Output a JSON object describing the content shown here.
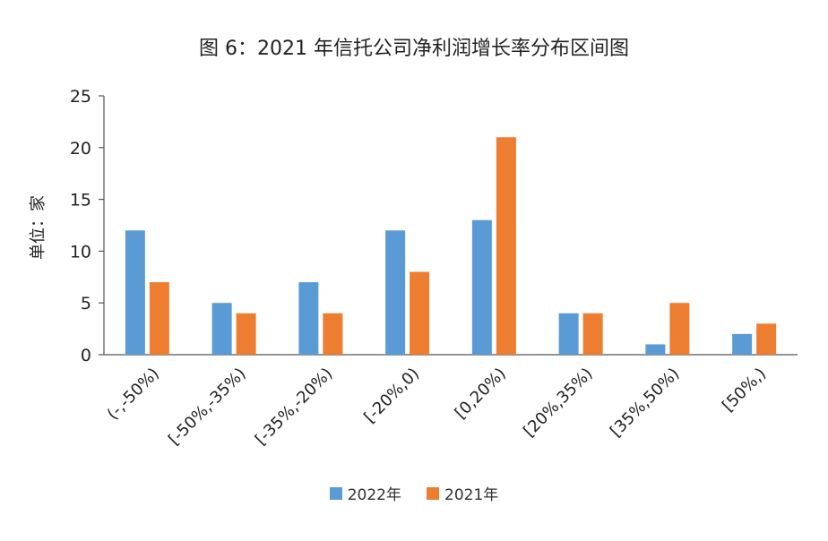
{
  "chart_data": {
    "type": "bar",
    "title": "图 6：2021 年信托公司净利润增长率分布区间图",
    "ylabel": "单位：家",
    "xlabel": "",
    "ylim": [
      0,
      25
    ],
    "yticks": [
      0,
      5,
      10,
      15,
      20,
      25
    ],
    "categories": [
      "(-,-50%)",
      "[-50%,-35%)",
      "[-35%,-20%)",
      "[-20%,0)",
      "[0,20%)",
      "[20%,35%)",
      "[35%,50%)",
      "[50%,)"
    ],
    "series": [
      {
        "name": "2022年",
        "color": "#5B9BD5",
        "values": [
          12,
          5,
          7,
          12,
          13,
          4,
          1,
          2
        ]
      },
      {
        "name": "2021年",
        "color": "#ED7D31",
        "values": [
          7,
          4,
          4,
          8,
          21,
          4,
          5,
          3
        ]
      }
    ],
    "grid": false,
    "legend_position": "bottom"
  }
}
